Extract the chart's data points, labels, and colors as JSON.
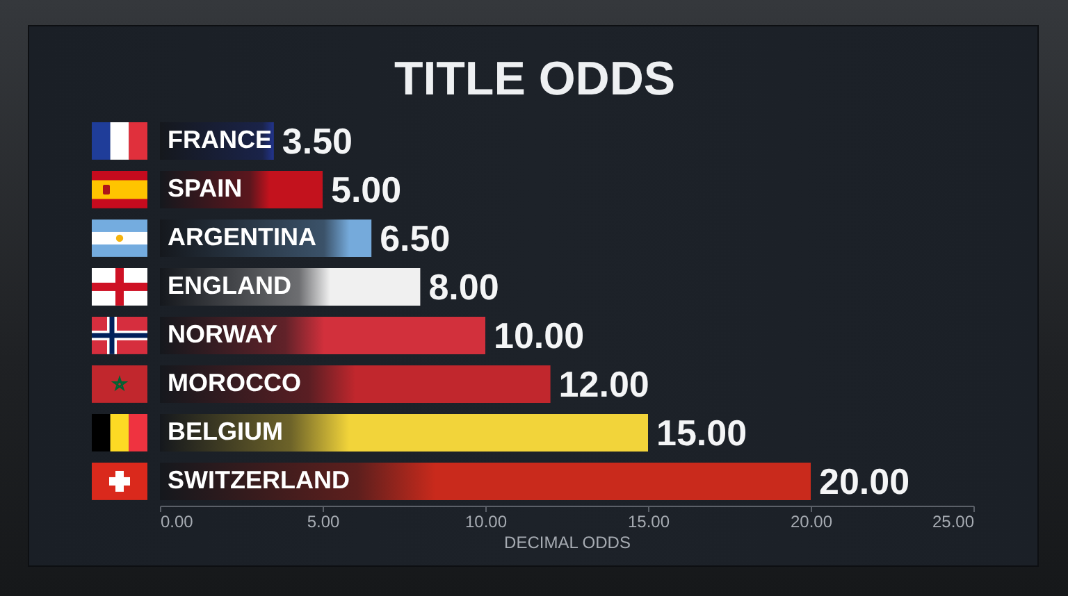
{
  "chart_data": {
    "type": "bar",
    "orientation": "horizontal",
    "title": "TITLE ODDS",
    "xlabel": "DECIMAL ODDS",
    "categories": [
      "FRANCE",
      "SPAIN",
      "ARGENTINA",
      "ENGLAND",
      "NORWAY",
      "MOROCCO",
      "BELGIUM",
      "SWITZERLAND"
    ],
    "values": [
      3.5,
      5,
      6.5,
      8,
      10,
      12,
      15,
      20
    ],
    "value_labels": [
      "3.50",
      "5.00",
      "6.50",
      "8.00",
      "10.00",
      "12.00",
      "15.00",
      "20.00"
    ],
    "colors": [
      "#22348c",
      "#c3121d",
      "#75aadb",
      "#f0f0f0",
      "#d2303c",
      "#c1272d",
      "#f2d43a",
      "#c92a1c"
    ],
    "xlim": [
      0,
      25
    ],
    "xticks": [
      {
        "value": 0,
        "label": "0.00"
      },
      {
        "value": 5,
        "label": "5.00"
      },
      {
        "value": 10,
        "label": "10.00"
      },
      {
        "value": 15,
        "label": "15.00"
      },
      {
        "value": 20,
        "label": "20.00"
      },
      {
        "value": 25,
        "label": "25.00"
      }
    ]
  }
}
